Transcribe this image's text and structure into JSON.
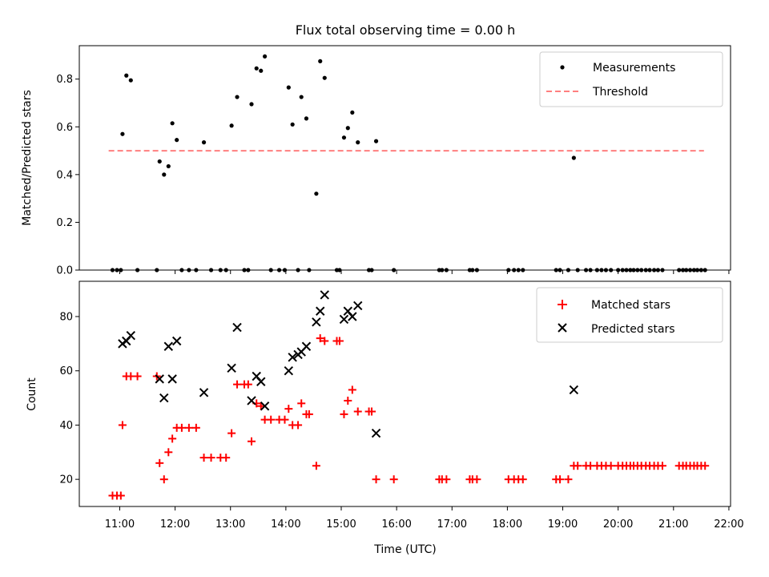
{
  "chart_data": [
    {
      "type": "scatter",
      "title": "Flux total observing time = 0.00 h",
      "xlabel": "",
      "ylabel": "Matched/Predicted stars",
      "xlim": [
        10.27,
        22.03
      ],
      "ylim": [
        0.0,
        0.94
      ],
      "yticks": [
        0.0,
        0.2,
        0.4,
        0.6,
        0.8
      ],
      "ytick_labels": [
        "0.0",
        "0.2",
        "0.4",
        "0.6",
        "0.8"
      ],
      "grid": false,
      "legend_position": "top-right",
      "series": [
        {
          "name": "Measurements",
          "marker": "dot",
          "color": "#000000",
          "points": [
            [
              10.87,
              0.0
            ],
            [
              10.95,
              0.0
            ],
            [
              11.02,
              0.0
            ],
            [
              11.05,
              0.57
            ],
            [
              11.12,
              0.815
            ],
            [
              11.2,
              0.795
            ],
            [
              11.32,
              0.0
            ],
            [
              11.67,
              0.0
            ],
            [
              11.72,
              0.455
            ],
            [
              11.8,
              0.4
            ],
            [
              11.88,
              0.435
            ],
            [
              11.95,
              0.615
            ],
            [
              12.03,
              0.545
            ],
            [
              12.12,
              0.0
            ],
            [
              12.25,
              0.0
            ],
            [
              12.38,
              0.0
            ],
            [
              12.52,
              0.535
            ],
            [
              12.65,
              0.0
            ],
            [
              12.82,
              0.0
            ],
            [
              12.92,
              0.0
            ],
            [
              13.02,
              0.605
            ],
            [
              13.12,
              0.725
            ],
            [
              13.25,
              0.0
            ],
            [
              13.32,
              0.0
            ],
            [
              13.38,
              0.695
            ],
            [
              13.47,
              0.845
            ],
            [
              13.55,
              0.835
            ],
            [
              13.62,
              0.895
            ],
            [
              13.73,
              0.0
            ],
            [
              13.88,
              0.0
            ],
            [
              13.98,
              0.0
            ],
            [
              14.05,
              0.765
            ],
            [
              14.12,
              0.61
            ],
            [
              14.22,
              0.0
            ],
            [
              14.28,
              0.725
            ],
            [
              14.37,
              0.635
            ],
            [
              14.42,
              0.0
            ],
            [
              14.55,
              0.32
            ],
            [
              14.62,
              0.875
            ],
            [
              14.7,
              0.805
            ],
            [
              14.92,
              0.0
            ],
            [
              14.97,
              0.0
            ],
            [
              15.05,
              0.555
            ],
            [
              15.12,
              0.595
            ],
            [
              15.2,
              0.66
            ],
            [
              15.3,
              0.535
            ],
            [
              15.5,
              0.0
            ],
            [
              15.55,
              0.0
            ],
            [
              15.63,
              0.54
            ],
            [
              15.95,
              0.0
            ],
            [
              16.77,
              0.0
            ],
            [
              16.82,
              0.0
            ],
            [
              16.9,
              0.0
            ],
            [
              17.32,
              0.0
            ],
            [
              17.37,
              0.0
            ],
            [
              17.45,
              0.0
            ],
            [
              18.02,
              0.0
            ],
            [
              18.12,
              0.0
            ],
            [
              18.2,
              0.0
            ],
            [
              18.28,
              0.0
            ],
            [
              18.88,
              0.0
            ],
            [
              18.95,
              0.0
            ],
            [
              19.1,
              0.0
            ],
            [
              19.2,
              0.47
            ],
            [
              19.27,
              0.0
            ],
            [
              19.42,
              0.0
            ],
            [
              19.5,
              0.0
            ],
            [
              19.62,
              0.0
            ],
            [
              19.7,
              0.0
            ],
            [
              19.78,
              0.0
            ],
            [
              19.87,
              0.0
            ],
            [
              20.0,
              0.0
            ],
            [
              20.08,
              0.0
            ],
            [
              20.15,
              0.0
            ],
            [
              20.22,
              0.0
            ],
            [
              20.28,
              0.0
            ],
            [
              20.35,
              0.0
            ],
            [
              20.42,
              0.0
            ],
            [
              20.5,
              0.0
            ],
            [
              20.57,
              0.0
            ],
            [
              20.65,
              0.0
            ],
            [
              20.72,
              0.0
            ],
            [
              20.8,
              0.0
            ],
            [
              21.1,
              0.0
            ],
            [
              21.17,
              0.0
            ],
            [
              21.23,
              0.0
            ],
            [
              21.3,
              0.0
            ],
            [
              21.37,
              0.0
            ],
            [
              21.43,
              0.0
            ],
            [
              21.5,
              0.0
            ],
            [
              21.57,
              0.0
            ]
          ]
        },
        {
          "name": "Threshold",
          "type": "line",
          "style": "dashed",
          "color": "#ff7f7f",
          "x": [
            10.8,
            21.55
          ],
          "y": [
            0.5,
            0.5
          ]
        }
      ]
    },
    {
      "type": "scatter",
      "title": "",
      "xlabel": "Time (UTC)",
      "ylabel": "Count",
      "xlim": [
        10.27,
        22.03
      ],
      "ylim": [
        10,
        93
      ],
      "xticks": [
        11,
        12,
        13,
        14,
        15,
        16,
        17,
        18,
        19,
        20,
        21,
        22
      ],
      "xtick_labels": [
        "11:00",
        "12:00",
        "13:00",
        "14:00",
        "15:00",
        "16:00",
        "17:00",
        "18:00",
        "19:00",
        "20:00",
        "21:00",
        "22:00"
      ],
      "yticks": [
        20,
        40,
        60,
        80
      ],
      "ytick_labels": [
        "20",
        "40",
        "60",
        "80"
      ],
      "grid": false,
      "legend_position": "top-right",
      "series": [
        {
          "name": "Matched stars",
          "marker": "plus",
          "color": "#ff0000",
          "points": [
            [
              10.87,
              14
            ],
            [
              10.95,
              14
            ],
            [
              11.02,
              14
            ],
            [
              11.05,
              40
            ],
            [
              11.12,
              58
            ],
            [
              11.2,
              58
            ],
            [
              11.32,
              58
            ],
            [
              11.67,
              58
            ],
            [
              11.72,
              26
            ],
            [
              11.8,
              20
            ],
            [
              11.88,
              30
            ],
            [
              11.95,
              35
            ],
            [
              12.03,
              39
            ],
            [
              12.12,
              39
            ],
            [
              12.25,
              39
            ],
            [
              12.38,
              39
            ],
            [
              12.52,
              28
            ],
            [
              12.65,
              28
            ],
            [
              12.82,
              28
            ],
            [
              12.92,
              28
            ],
            [
              13.02,
              37
            ],
            [
              13.12,
              55
            ],
            [
              13.25,
              55
            ],
            [
              13.32,
              55
            ],
            [
              13.38,
              34
            ],
            [
              13.47,
              48
            ],
            [
              13.55,
              47
            ],
            [
              13.62,
              42
            ],
            [
              13.73,
              42
            ],
            [
              13.88,
              42
            ],
            [
              13.98,
              42
            ],
            [
              14.05,
              46
            ],
            [
              14.12,
              40
            ],
            [
              14.22,
              40
            ],
            [
              14.28,
              48
            ],
            [
              14.37,
              44
            ],
            [
              14.42,
              44
            ],
            [
              14.55,
              25
            ],
            [
              14.62,
              72
            ],
            [
              14.7,
              71
            ],
            [
              14.92,
              71
            ],
            [
              14.97,
              71
            ],
            [
              15.05,
              44
            ],
            [
              15.12,
              49
            ],
            [
              15.2,
              53
            ],
            [
              15.3,
              45
            ],
            [
              15.5,
              45
            ],
            [
              15.55,
              45
            ],
            [
              15.63,
              20
            ],
            [
              15.95,
              20
            ],
            [
              16.77,
              20
            ],
            [
              16.82,
              20
            ],
            [
              16.9,
              20
            ],
            [
              17.32,
              20
            ],
            [
              17.37,
              20
            ],
            [
              17.45,
              20
            ],
            [
              18.02,
              20
            ],
            [
              18.12,
              20
            ],
            [
              18.2,
              20
            ],
            [
              18.28,
              20
            ],
            [
              18.88,
              20
            ],
            [
              18.95,
              20
            ],
            [
              19.1,
              20
            ],
            [
              19.2,
              25
            ],
            [
              19.27,
              25
            ],
            [
              19.42,
              25
            ],
            [
              19.5,
              25
            ],
            [
              19.62,
              25
            ],
            [
              19.7,
              25
            ],
            [
              19.78,
              25
            ],
            [
              19.87,
              25
            ],
            [
              20.0,
              25
            ],
            [
              20.08,
              25
            ],
            [
              20.15,
              25
            ],
            [
              20.22,
              25
            ],
            [
              20.28,
              25
            ],
            [
              20.35,
              25
            ],
            [
              20.42,
              25
            ],
            [
              20.5,
              25
            ],
            [
              20.57,
              25
            ],
            [
              20.65,
              25
            ],
            [
              20.72,
              25
            ],
            [
              20.8,
              25
            ],
            [
              21.1,
              25
            ],
            [
              21.17,
              25
            ],
            [
              21.23,
              25
            ],
            [
              21.3,
              25
            ],
            [
              21.37,
              25
            ],
            [
              21.43,
              25
            ],
            [
              21.5,
              25
            ],
            [
              21.57,
              25
            ]
          ]
        },
        {
          "name": "Predicted stars",
          "marker": "x",
          "color": "#000000",
          "points": [
            [
              11.05,
              70
            ],
            [
              11.12,
              71
            ],
            [
              11.2,
              73
            ],
            [
              11.72,
              57
            ],
            [
              11.8,
              50
            ],
            [
              11.88,
              69
            ],
            [
              11.95,
              57
            ],
            [
              12.03,
              71
            ],
            [
              12.52,
              52
            ],
            [
              13.02,
              61
            ],
            [
              13.12,
              76
            ],
            [
              13.38,
              49
            ],
            [
              13.47,
              58
            ],
            [
              13.55,
              56
            ],
            [
              13.62,
              47
            ],
            [
              14.05,
              60
            ],
            [
              14.12,
              65
            ],
            [
              14.22,
              66
            ],
            [
              14.28,
              67
            ],
            [
              14.37,
              69
            ],
            [
              14.55,
              78
            ],
            [
              14.62,
              82
            ],
            [
              14.7,
              88
            ],
            [
              15.05,
              79
            ],
            [
              15.12,
              82
            ],
            [
              15.2,
              80
            ],
            [
              15.3,
              84
            ],
            [
              15.63,
              37
            ],
            [
              19.2,
              53
            ]
          ]
        }
      ]
    }
  ]
}
